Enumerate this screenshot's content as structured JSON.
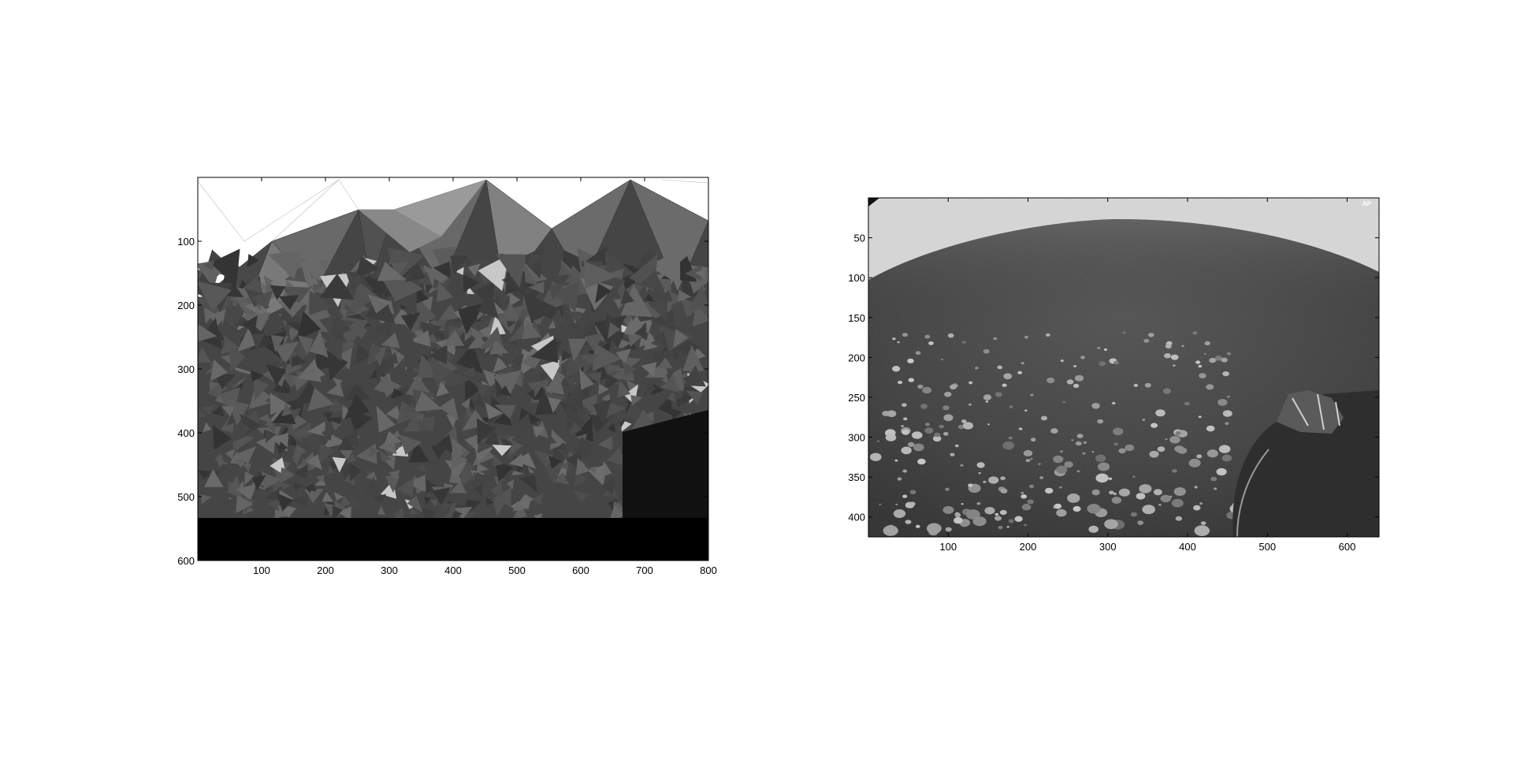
{
  "figure": {
    "background": "#ffffff"
  },
  "chart_data": [
    {
      "type": "image",
      "name": "left-panel",
      "image_width": 800,
      "image_height": 600,
      "xlim": [
        0,
        800
      ],
      "ylim": [
        600,
        0
      ],
      "x_ticks": [
        100,
        200,
        300,
        400,
        500,
        600,
        700,
        800
      ],
      "y_ticks": [
        100,
        200,
        300,
        400,
        500,
        600
      ],
      "x_tick_labels": [
        "100",
        "200",
        "300",
        "400",
        "500",
        "600",
        "700",
        "800"
      ],
      "y_tick_labels": [
        "100",
        "200",
        "300",
        "400",
        "500",
        "600"
      ],
      "title": "",
      "xlabel": "",
      "ylabel": "",
      "content": "grayscale delaunay triangulation mesh",
      "colors": {
        "fill_dark": "#3a3a3a",
        "fill_light": "#8a8a8a",
        "bottom_band": "#000000"
      }
    },
    {
      "type": "image",
      "name": "right-panel",
      "image_width": 640,
      "image_height": 425,
      "xlim": [
        0,
        640
      ],
      "ylim": [
        425,
        0
      ],
      "x_ticks": [
        100,
        200,
        300,
        400,
        500,
        600
      ],
      "y_ticks": [
        50,
        100,
        150,
        200,
        250,
        300,
        350,
        400
      ],
      "x_tick_labels": [
        "100",
        "200",
        "300",
        "400",
        "500",
        "600"
      ],
      "y_tick_labels": [
        "50",
        "100",
        "150",
        "200",
        "250",
        "300",
        "350",
        "400"
      ],
      "title": "",
      "xlabel": "",
      "ylabel": "",
      "content": "grayscale fisheye photograph of rocky terrain",
      "watermark": "AP",
      "colors": {
        "ground": "#3b3b3b",
        "sky": "#d6d6d6"
      }
    }
  ]
}
